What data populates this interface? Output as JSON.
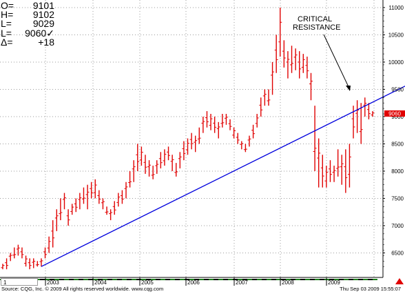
{
  "ohlc": [
    {
      "label": "O=",
      "value": "9101"
    },
    {
      "label": "H=",
      "value": "9102"
    },
    {
      "label": "L=",
      "value": "9029"
    },
    {
      "label": "L=",
      "value": "9060✓"
    },
    {
      "label": "Δ=",
      "value": "+18"
    }
  ],
  "annotation": {
    "line1": "CRITICAL",
    "line2": "RESISTANCE"
  },
  "last_price_label": "9060",
  "tab_label": "1",
  "footer": {
    "left": "Source: CQG, Inc. © 2009 All rights reserved worldwide. www.cqg.com",
    "right": "Thu Sep 03 2009 15:55:07"
  },
  "colors": {
    "bars": "#e00000",
    "trendline": "#0000dd",
    "price_tag": "#e00000"
  },
  "chart_data": {
    "type": "ohlc",
    "y_ticks": [
      6500,
      7000,
      7500,
      8000,
      8500,
      9000,
      9500,
      10000,
      10500,
      11000
    ],
    "ylim": [
      6050,
      11050
    ],
    "x_labels": [
      "2003",
      "2004",
      "2005",
      "2006",
      "2007",
      "2008",
      "2009"
    ],
    "grid": true,
    "last_price": 9060,
    "trendline": {
      "from": {
        "bar": 10,
        "price": 6250
      },
      "to": {
        "bar": 107,
        "price": 9650
      }
    },
    "bars": [
      [
        6300,
        6200
      ],
      [
        6400,
        6200
      ],
      [
        6500,
        6350
      ],
      [
        6600,
        6400
      ],
      [
        6650,
        6450
      ],
      [
        6600,
        6400
      ],
      [
        6450,
        6250
      ],
      [
        6400,
        6200
      ],
      [
        6400,
        6220
      ],
      [
        6350,
        6250
      ],
      [
        6400,
        6250
      ],
      [
        6600,
        6400
      ],
      [
        6800,
        6500
      ],
      [
        7100,
        6600
      ],
      [
        7300,
        6900
      ],
      [
        7500,
        7100
      ],
      [
        7600,
        7300
      ],
      [
        7300,
        7000
      ],
      [
        7400,
        7200
      ],
      [
        7500,
        7250
      ],
      [
        7600,
        7300
      ],
      [
        7700,
        7400
      ],
      [
        7750,
        7300
      ],
      [
        7800,
        7500
      ],
      [
        7850,
        7500
      ],
      [
        7650,
        7400
      ],
      [
        7500,
        7300
      ],
      [
        7350,
        7200
      ],
      [
        7300,
        7100
      ],
      [
        7450,
        7200
      ],
      [
        7600,
        7350
      ],
      [
        7650,
        7400
      ],
      [
        7800,
        7500
      ],
      [
        8000,
        7700
      ],
      [
        8200,
        7800
      ],
      [
        8500,
        8000
      ],
      [
        8450,
        8100
      ],
      [
        8300,
        7950
      ],
      [
        8200,
        7900
      ],
      [
        8100,
        7850
      ],
      [
        8200,
        7950
      ],
      [
        8350,
        8050
      ],
      [
        8400,
        8100
      ],
      [
        8450,
        8200
      ],
      [
        8300,
        8000
      ],
      [
        8150,
        7900
      ],
      [
        8350,
        8050
      ],
      [
        8550,
        8200
      ],
      [
        8600,
        8300
      ],
      [
        8700,
        8400
      ],
      [
        8650,
        8350
      ],
      [
        8800,
        8500
      ],
      [
        9000,
        8700
      ],
      [
        9100,
        8800
      ],
      [
        9050,
        8750
      ],
      [
        9000,
        8700
      ],
      [
        8900,
        8600
      ],
      [
        9050,
        8800
      ],
      [
        9050,
        8850
      ],
      [
        8950,
        8750
      ],
      [
        8800,
        8600
      ],
      [
        8700,
        8500
      ],
      [
        8550,
        8400
      ],
      [
        8500,
        8350
      ],
      [
        8650,
        8450
      ],
      [
        8850,
        8600
      ],
      [
        9050,
        8800
      ],
      [
        9350,
        9000
      ],
      [
        9500,
        9200
      ],
      [
        9500,
        9200
      ],
      [
        10000,
        9400
      ],
      [
        10500,
        9800
      ],
      [
        11000,
        10100
      ],
      [
        10400,
        9900
      ],
      [
        10200,
        9700
      ],
      [
        10300,
        9800
      ],
      [
        10250,
        9850
      ],
      [
        10200,
        9700
      ],
      [
        10150,
        9800
      ],
      [
        10100,
        9700
      ],
      [
        9800,
        9300
      ],
      [
        9200,
        8000
      ],
      [
        8600,
        7700
      ],
      [
        8300,
        7700
      ],
      [
        8100,
        7700
      ],
      [
        8200,
        7800
      ],
      [
        8100,
        7800
      ],
      [
        8400,
        7900
      ],
      [
        8300,
        7750
      ],
      [
        8400,
        7600
      ],
      [
        8500,
        7700
      ],
      [
        9200,
        8600
      ],
      [
        9300,
        8700
      ],
      [
        9250,
        8500
      ],
      [
        9350,
        9000
      ],
      [
        9250,
        8950
      ],
      [
        9100,
        9000
      ]
    ]
  }
}
